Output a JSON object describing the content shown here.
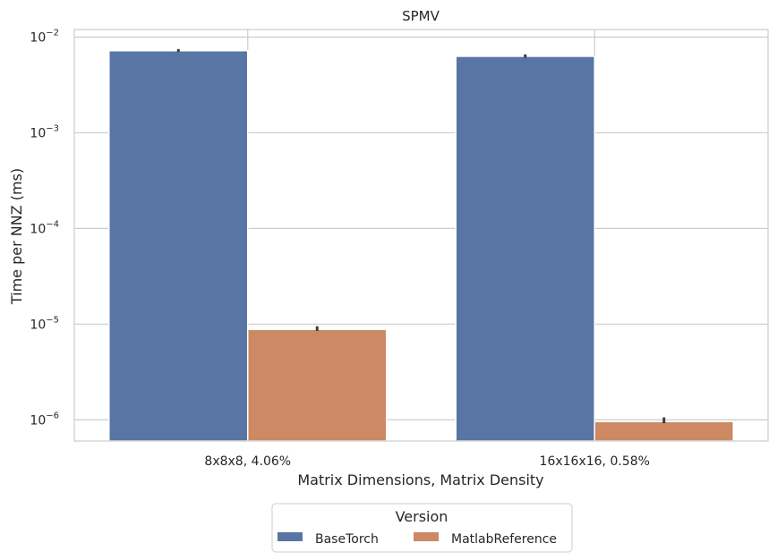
{
  "chart_data": {
    "type": "bar",
    "title": "SPMV",
    "xlabel": "Matrix Dimensions, Matrix Density",
    "ylabel": "Time per NNZ (ms)",
    "yscale": "log",
    "ylim": [
      6e-07,
      0.012
    ],
    "grid": true,
    "categories": [
      "8x8x8, 4.06%",
      "16x16x16, 0.58%"
    ],
    "yticks": [
      {
        "value": 0.01,
        "base": "10",
        "exp": "−2"
      },
      {
        "value": 0.001,
        "base": "10",
        "exp": "−3"
      },
      {
        "value": 0.0001,
        "base": "10",
        "exp": "−4"
      },
      {
        "value": 1e-05,
        "base": "10",
        "exp": "−5"
      },
      {
        "value": 1e-06,
        "base": "10",
        "exp": "−6"
      }
    ],
    "series": [
      {
        "name": "BaseTorch",
        "color": "#5875a4",
        "values": [
          0.0072,
          0.0063
        ],
        "err_low": [
          0.007,
          0.0061
        ],
        "err_high": [
          0.0075,
          0.0066
        ]
      },
      {
        "name": "MatlabReference",
        "color": "#cc8963",
        "values": [
          8.8e-06,
          9.6e-07
        ],
        "err_low": [
          8.5e-06,
          9.2e-07
        ],
        "err_high": [
          9.5e-06,
          1.06e-06
        ]
      }
    ],
    "legend": {
      "title": "Version",
      "placement": "below-center"
    }
  }
}
